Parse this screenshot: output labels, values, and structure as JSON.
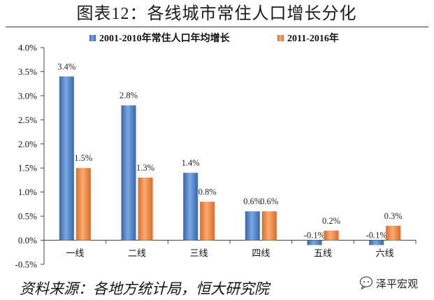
{
  "title": "图表12：各线城市常住人口增长分化",
  "source": "资料来源：各地方统计局，恒大研究院",
  "brand": {
    "name": "泽平宏观",
    "icon": "wechat-icon"
  },
  "chart_data": {
    "type": "bar",
    "title": "图表12：各线城市常住人口增长分化",
    "xlabel": "",
    "ylabel": "",
    "categories": [
      "一线",
      "二线",
      "三线",
      "四线",
      "五线",
      "六线"
    ],
    "series": [
      {
        "name": "2001-2010年常住人口年均增长",
        "values": [
          3.4,
          2.8,
          1.4,
          0.6,
          -0.1,
          -0.1
        ],
        "labels": [
          "3.4%",
          "2.8%",
          "1.4%",
          "0.6%",
          "-0.1%",
          "-0.1%"
        ],
        "color": "#3766ad",
        "highlight": "#79a8e2"
      },
      {
        "name": "2011-2016年",
        "values": [
          1.5,
          1.3,
          0.8,
          0.6,
          0.2,
          0.3
        ],
        "labels": [
          "1.5%",
          "1.3%",
          "0.8%",
          "0.6%",
          "0.2%",
          "0.3%"
        ],
        "color": "#dd6a28",
        "highlight": "#f9ad72"
      }
    ],
    "ylim": [
      -0.5,
      4.0
    ],
    "yticks": [
      4.0,
      3.5,
      3.0,
      2.5,
      2.0,
      1.5,
      1.0,
      0.5,
      0.0,
      -0.5
    ],
    "ytick_labels": [
      "4.0%",
      "3.5%",
      "3.0%",
      "2.5%",
      "2.0%",
      "1.5%",
      "1.0%",
      "0.5%",
      "0.0%",
      "-0.5%"
    ],
    "grid": false,
    "legend": "top"
  }
}
